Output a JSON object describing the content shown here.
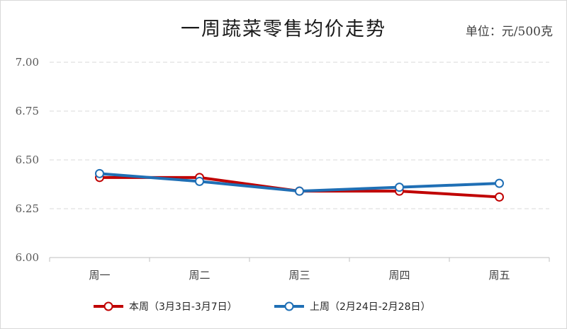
{
  "chart_data": {
    "type": "line",
    "title": "一周蔬菜零售均价走势",
    "unit": "单位：元/500克",
    "categories": [
      "周一",
      "周二",
      "周三",
      "周四",
      "周五"
    ],
    "ylim": [
      6.0,
      7.0
    ],
    "yticks": [
      "6.00",
      "6.25",
      "6.50",
      "6.75",
      "7.00"
    ],
    "grid": true,
    "legend_position": "bottom",
    "series": [
      {
        "name": "本周（3月3日-3月7日）",
        "color": "#c00000",
        "values": [
          6.41,
          6.41,
          6.34,
          6.34,
          6.31
        ]
      },
      {
        "name": "上周（2月24日-2月28日）",
        "color": "#1f6fb5",
        "values": [
          6.43,
          6.39,
          6.34,
          6.36,
          6.38
        ]
      }
    ]
  }
}
